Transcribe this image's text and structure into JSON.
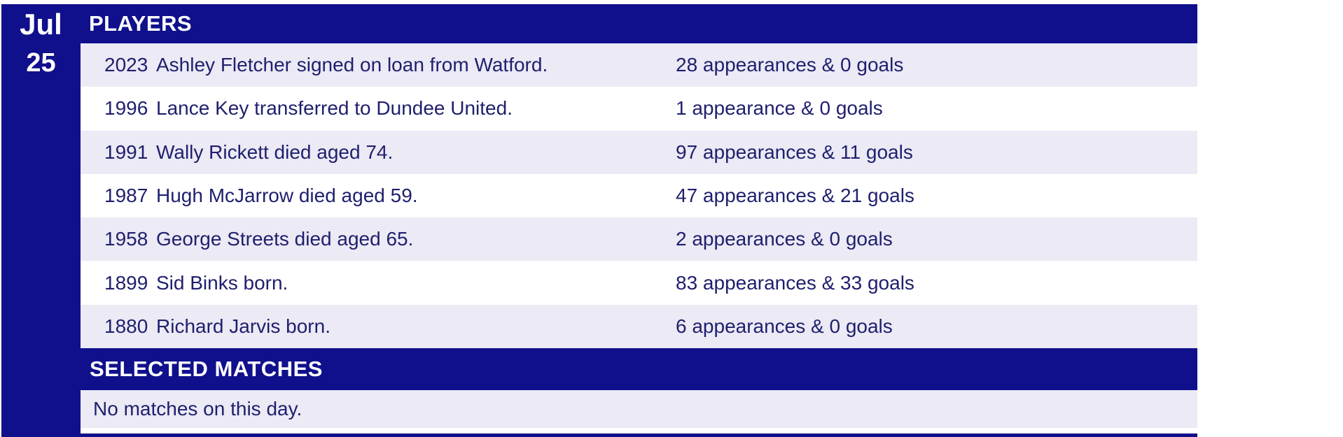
{
  "colors": {
    "navy": "#10108C",
    "lavender": "#EBEAF5",
    "ink": "#1F1F6E",
    "page_bg": "#FFFFFF"
  },
  "date": {
    "month": "Jul",
    "day": "25"
  },
  "players_section": {
    "title": "PLAYERS",
    "rows": [
      {
        "year": "2023",
        "event": "Ashley Fletcher signed on loan from Watford.",
        "stats": "28 appearances & 0 goals"
      },
      {
        "year": "1996",
        "event": "Lance Key transferred to Dundee United.",
        "stats": "1 appearance & 0 goals"
      },
      {
        "year": "1991",
        "event": "Wally Rickett died aged 74.",
        "stats": "97 appearances & 11 goals"
      },
      {
        "year": "1987",
        "event": "Hugh McJarrow died aged 59.",
        "stats": "47 appearances & 21 goals"
      },
      {
        "year": "1958",
        "event": "George Streets died aged 65.",
        "stats": "2 appearances & 0 goals"
      },
      {
        "year": "1899",
        "event": "Sid Binks born.",
        "stats": "83 appearances & 33 goals"
      },
      {
        "year": "1880",
        "event": "Richard Jarvis born.",
        "stats": "6 appearances & 0 goals"
      }
    ]
  },
  "matches_section": {
    "title": "SELECTED MATCHES",
    "empty_message": "No matches on this day."
  }
}
